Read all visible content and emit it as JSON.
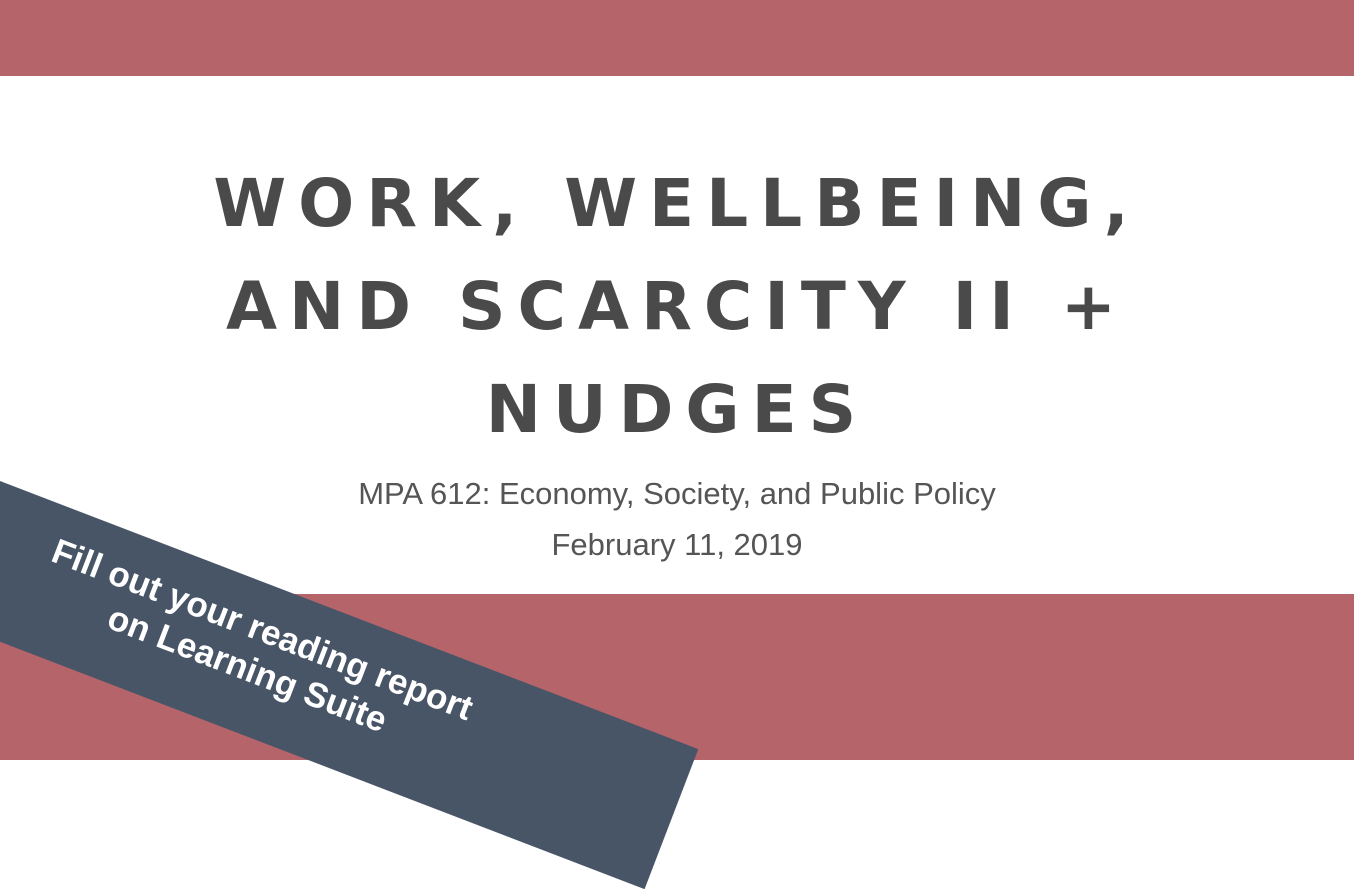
{
  "slide": {
    "title_lines": [
      "WORK, WELLBEING,",
      "AND SCARCITY II +",
      "NUDGES"
    ],
    "course": "MPA 612: Economy, Society, and Public Policy",
    "date": "February 11, 2019"
  },
  "ribbon": {
    "lines": [
      "Fill out your reading report",
      "on Learning Suite"
    ]
  },
  "colors": {
    "band": "#b5646a",
    "ribbon": "#485567",
    "title_text": "#4a4a4a",
    "background": "#ffffff"
  }
}
